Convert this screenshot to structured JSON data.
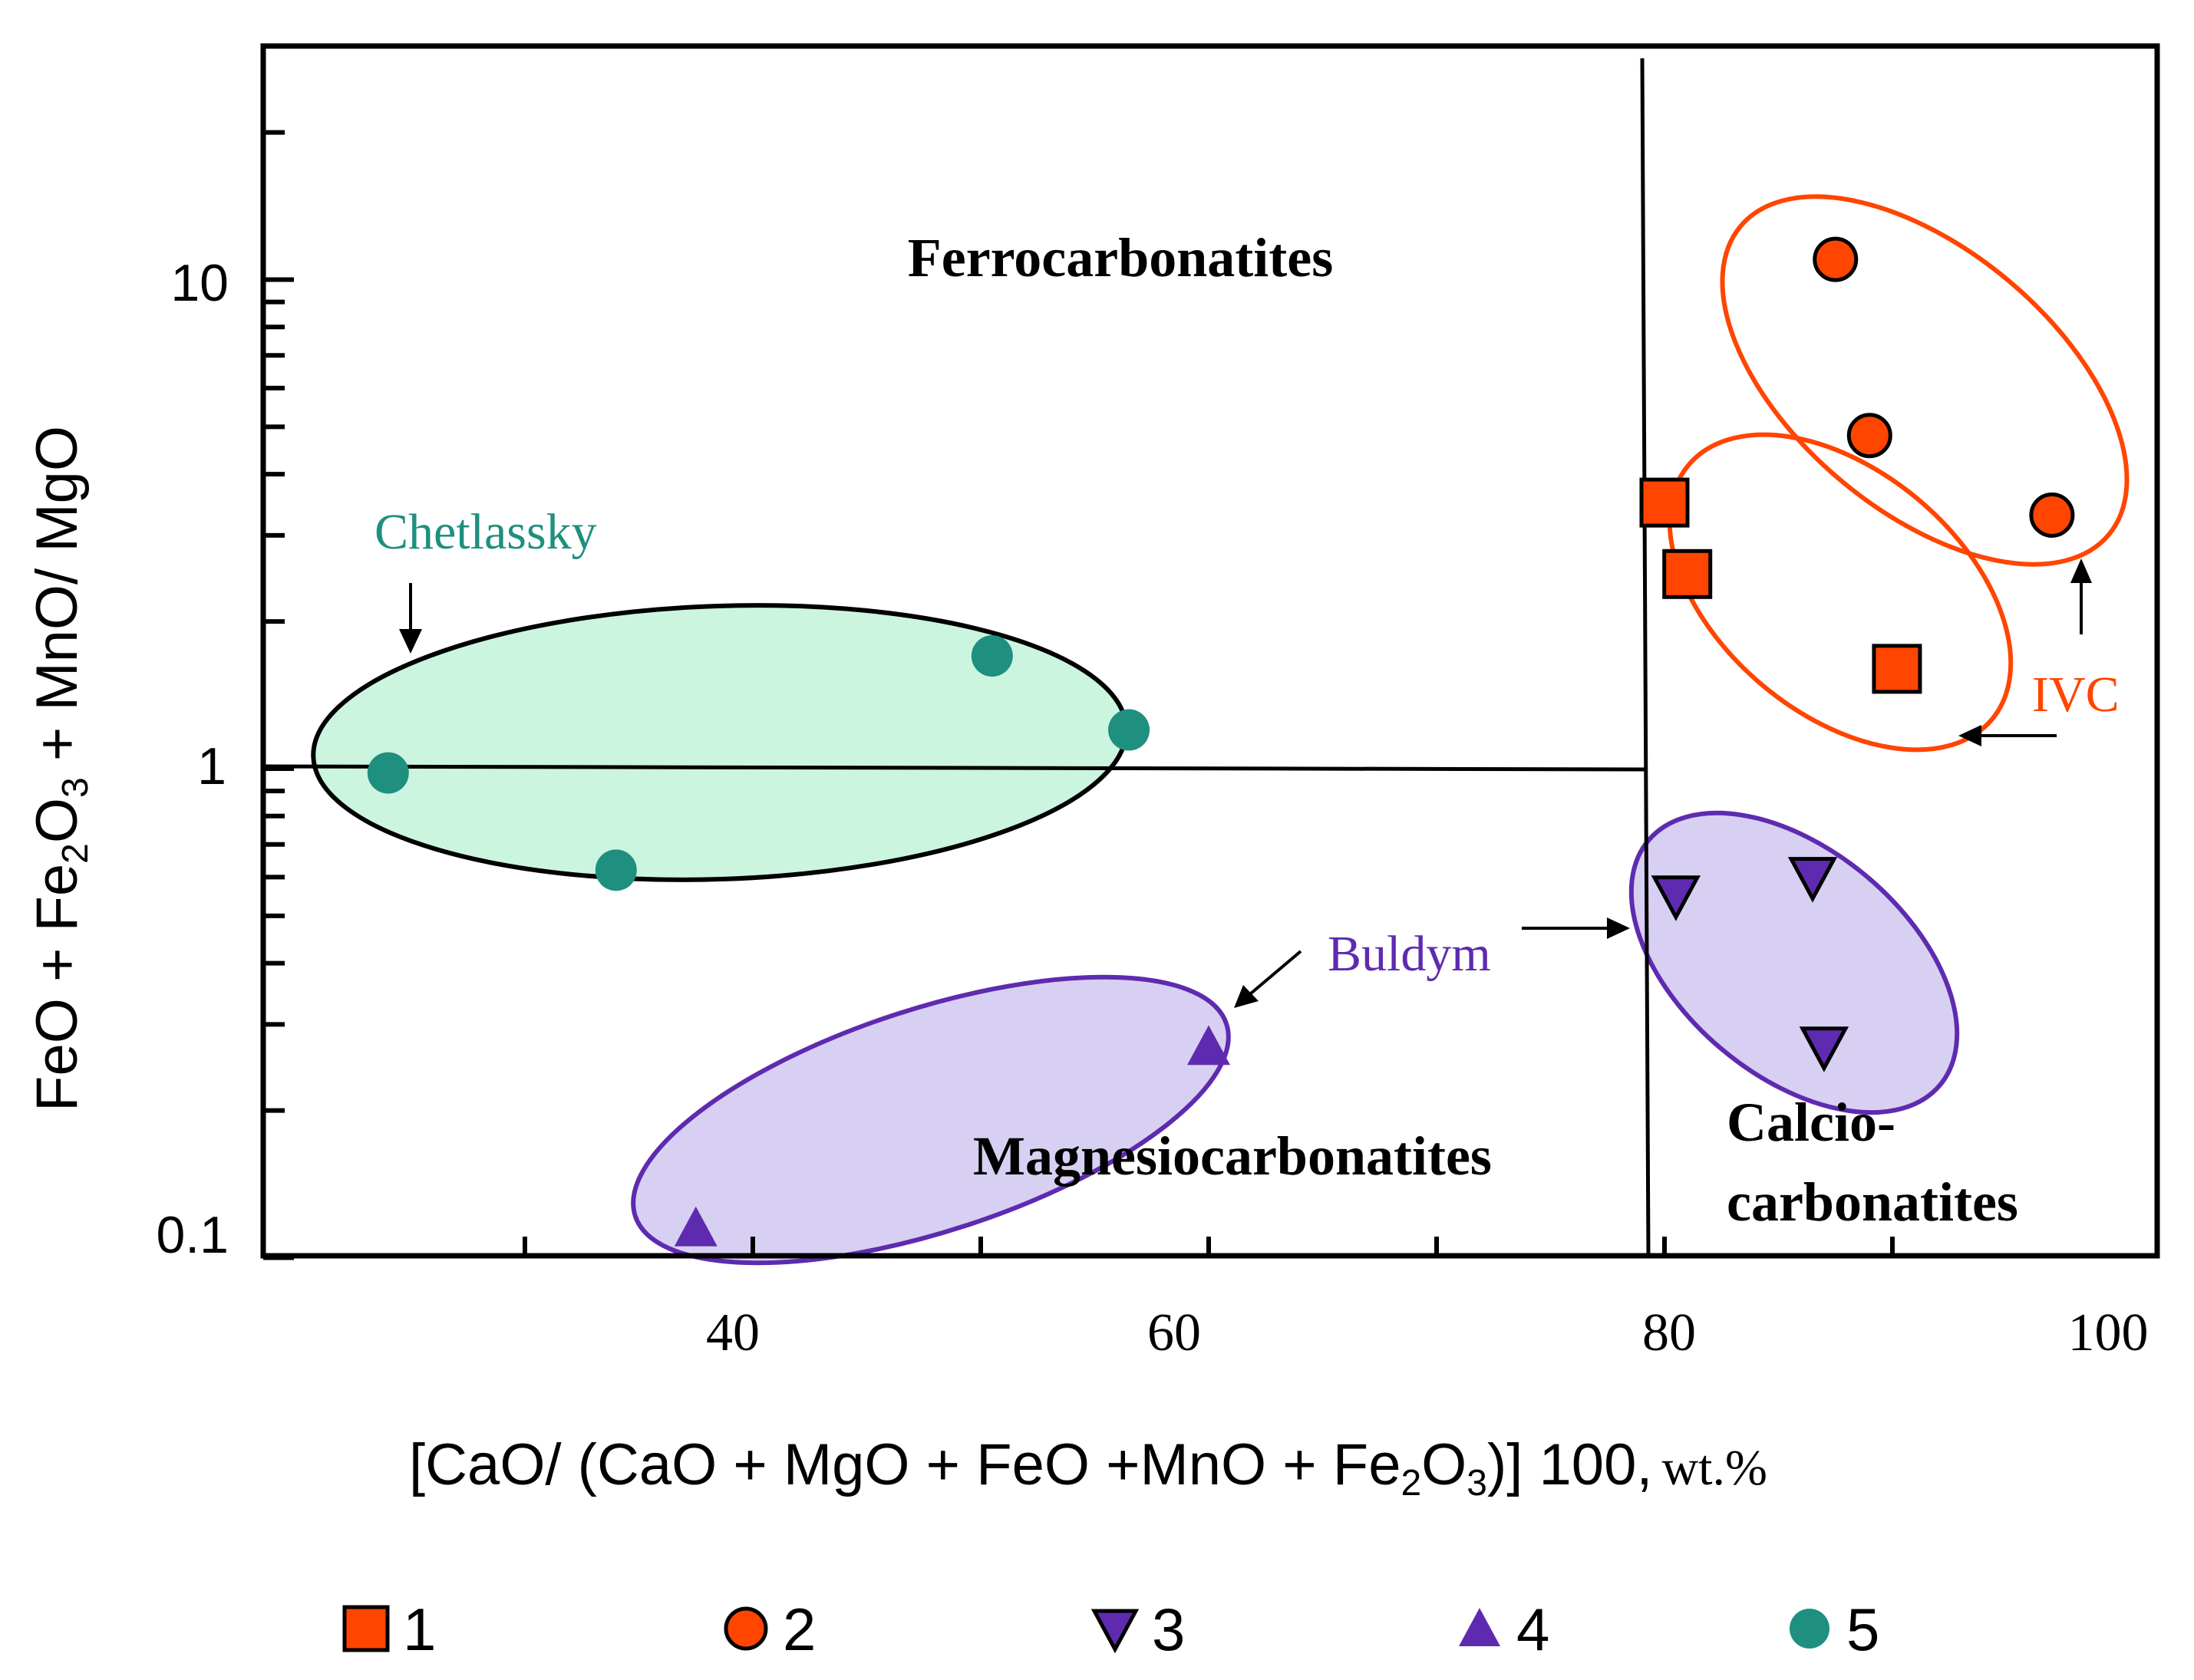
{
  "chart_data": {
    "type": "scatter",
    "title": "",
    "xlabel_main": "[CaO/ (CaO + MgO + FeO +MnO + Fe",
    "xlabel_sub": "2",
    "xlabel_mid": "O",
    "xlabel_sub2": "3",
    "xlabel_close": ")]  100,",
    "xlabel_unit": "wt.%",
    "ylabel_pre": "FeO + Fe",
    "ylabel_sub": "2",
    "ylabel_mid": "O",
    "ylabel_sub2": "3",
    "ylabel_post": " + MnO/ MgO",
    "x_range": [
      20,
      100
    ],
    "y_range": [
      0.1,
      30
    ],
    "y_scale": "log",
    "x_tick_labels": [
      "40",
      "60",
      "80",
      "100"
    ],
    "y_tick_labels": [
      "0.1",
      "1",
      "10"
    ],
    "field_labels": {
      "ferro": "Ferrocarbonatites",
      "magnesio": "Magnesiocarbonatites",
      "calcio_1": "Calcio-",
      "calcio_2": "carbonatites"
    },
    "annotations": {
      "chetlassky": "Chetlassky",
      "buldym": "Buldym",
      "ivc": "IVC"
    },
    "boundaries": {
      "vertical_x": 80,
      "horizontal_y": 1
    },
    "series": [
      {
        "name": "1",
        "marker": "square",
        "color": "#ff4500",
        "points": [
          [
            80.0,
            3.5
          ],
          [
            81.0,
            2.5
          ],
          [
            90.2,
            1.6
          ]
        ]
      },
      {
        "name": "2",
        "marker": "circle",
        "color": "#ff4500",
        "points": [
          [
            87.5,
            11.0
          ],
          [
            89.0,
            4.8
          ],
          [
            97.0,
            3.3
          ]
        ]
      },
      {
        "name": "3",
        "marker": "triangle-down",
        "color": "#5e2bb0",
        "points": [
          [
            80.5,
            0.55
          ],
          [
            86.5,
            0.6
          ],
          [
            87.0,
            0.27
          ]
        ]
      },
      {
        "name": "4",
        "marker": "triangle-up",
        "color": "#5e2bb0",
        "points": [
          [
            37.5,
            0.115
          ],
          [
            60.0,
            0.27
          ]
        ]
      },
      {
        "name": "5",
        "marker": "circle",
        "color": "#1f8f7f",
        "points": [
          [
            24.0,
            0.98
          ],
          [
            34.0,
            0.62
          ],
          [
            50.5,
            1.7
          ],
          [
            56.5,
            1.2
          ]
        ]
      }
    ],
    "legend": [
      "1",
      "2",
      "3",
      "4",
      "5"
    ],
    "legend_placement": "bottom"
  },
  "colors": {
    "ivc": "#ff4500",
    "buldym": "#5e2bb0",
    "buldym_fill": "#d8d0f2",
    "chetlassky": "#1f8f7f",
    "chetlassky_fill": "#ccf5e0"
  }
}
